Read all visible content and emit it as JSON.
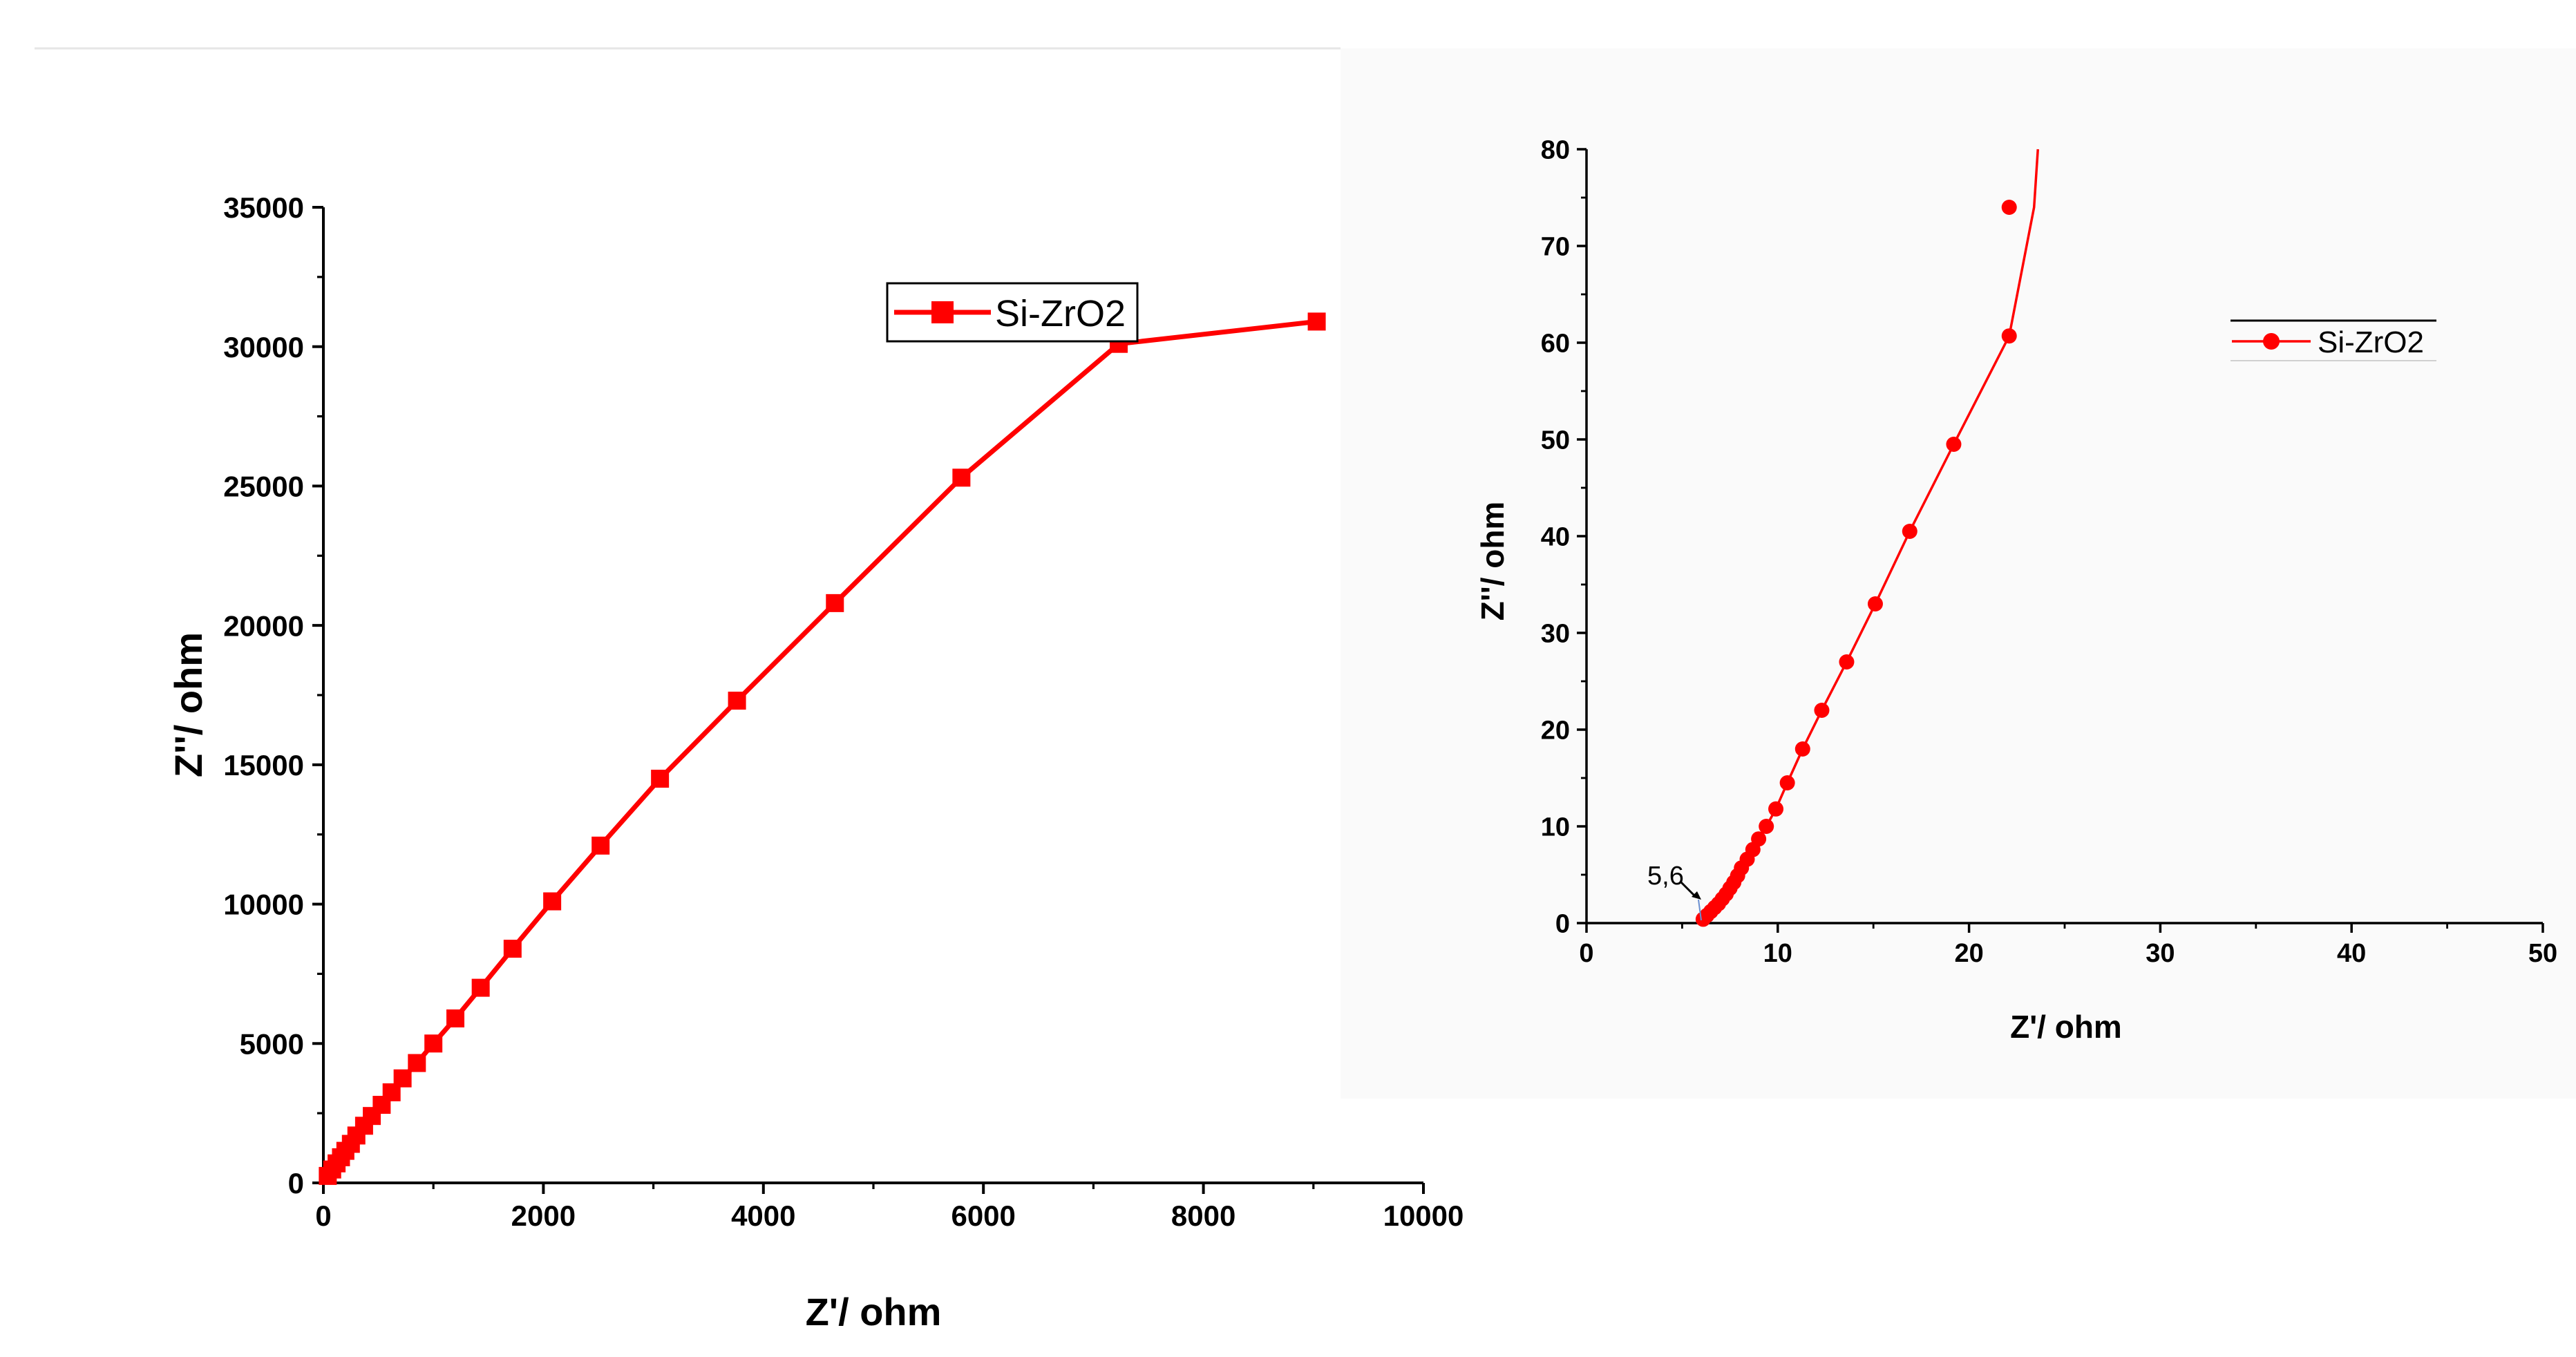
{
  "chart_data": [
    {
      "type": "line",
      "xlabel": "Z'/ ohm",
      "ylabel": "Z''/ ohm",
      "xlim": [
        0,
        10000
      ],
      "ylim": [
        0,
        35000
      ],
      "xticks": [
        "0",
        "2000",
        "4000",
        "6000",
        "8000",
        "10000"
      ],
      "yticks": [
        "0",
        "5000",
        "10000",
        "15000",
        "20000",
        "25000",
        "30000",
        "35000"
      ],
      "legend": "top-right",
      "grid": false,
      "colors": {
        "series": "#ff0000"
      },
      "series": [
        {
          "name": "Si-ZrO2",
          "marker": "square",
          "x": [
            40,
            80,
            120,
            160,
            200,
            250,
            300,
            370,
            440,
            530,
            620,
            720,
            850,
            1000,
            1200,
            1430,
            1720,
            2080,
            2520,
            3060,
            3760,
            4650,
            5800,
            7230,
            9030
          ],
          "y": [
            250,
            480,
            700,
            920,
            1150,
            1400,
            1700,
            2050,
            2400,
            2800,
            3250,
            3750,
            4300,
            5000,
            5900,
            7000,
            8400,
            10100,
            12100,
            14500,
            17300,
            20800,
            25300,
            30100,
            30900
          ]
        }
      ]
    },
    {
      "type": "line",
      "xlabel": "Z'/ ohm",
      "ylabel": "Z''/ ohm",
      "xlim": [
        0,
        50
      ],
      "ylim": [
        0,
        80
      ],
      "xticks": [
        "0",
        "10",
        "20",
        "30",
        "40",
        "50"
      ],
      "yticks": [
        "0",
        "10",
        "20",
        "30",
        "40",
        "50",
        "60",
        "70",
        "80"
      ],
      "legend": "top-right",
      "grid": false,
      "colors": {
        "series": "#ff0000"
      },
      "annotation": {
        "text": "5,6",
        "x": 5.6,
        "y": 0
      },
      "series": [
        {
          "name": "Si-ZrO2",
          "marker": "circle",
          "x": [
            6.1,
            6.3,
            6.5,
            6.7,
            6.9,
            7.1,
            7.3,
            7.5,
            7.7,
            7.9,
            8.1,
            8.4,
            8.7,
            9.0,
            9.4,
            9.9,
            10.5,
            11.3,
            12.3,
            13.6,
            15.1,
            16.9,
            19.2,
            22.1
          ],
          "y": [
            0.4,
            0.8,
            1.2,
            1.6,
            2.0,
            2.5,
            3.0,
            3.6,
            4.2,
            4.9,
            5.7,
            6.6,
            7.6,
            8.7,
            10.0,
            11.8,
            14.5,
            18.0,
            22.0,
            27.0,
            33.0,
            40.5,
            49.5,
            60.7
          ]
        }
      ],
      "series_extra_points": {
        "x": [
          23.4
        ],
        "y": [
          74.0
        ]
      }
    }
  ]
}
